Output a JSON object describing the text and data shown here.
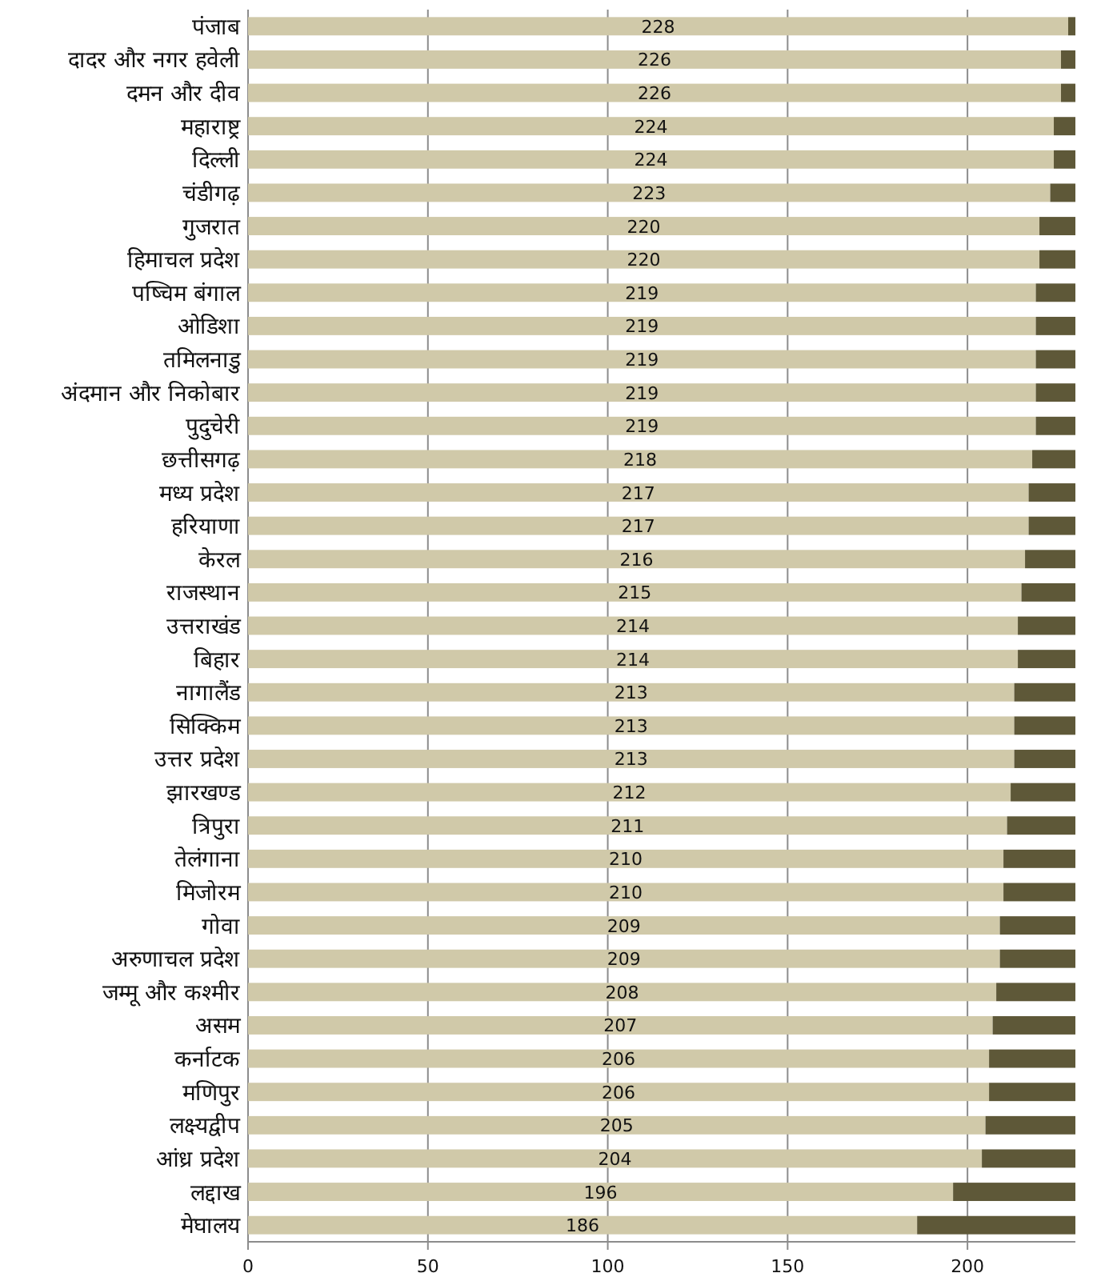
{
  "chart_data": {
    "type": "bar",
    "orientation": "horizontal",
    "stacked": true,
    "grid": "x",
    "categories": [
      "पंजाब",
      "दादर और नगर हवेली",
      "दमन और दीव",
      "महाराष्ट्र",
      "दिल्ली",
      "चंडीगढ़",
      "गुजरात",
      "हिमाचल प्रदेश",
      "पष्चिम बंगाल",
      "ओडिशा",
      "तमिलनाडु",
      "अंदमान और निकोबार",
      "पुदुचेरी",
      "छत्तीसगढ़",
      "मध्य प्रदेश",
      "हरियाणा",
      "केरल",
      "राजस्थान",
      "उत्तराखंड",
      "बिहार",
      "नागालैंड",
      "सिक्किम",
      "उत्तर प्रदेश",
      "झारखण्ड",
      "त्रिपुरा",
      "तेलंगाना",
      "मिजोरम",
      "गोवा",
      "अरुणाचल प्रदेश",
      "जम्मू और कश्मीर",
      "असम",
      "कर्नाटक",
      "मणिपुर",
      "लक्ष्यद्वीप",
      "आंध्र प्रदेश",
      "लद्दाख",
      "मेघालय"
    ],
    "series": [
      {
        "color": "#d0c9a9",
        "values": [
          228,
          226,
          226,
          224,
          224,
          223,
          220,
          220,
          219,
          219,
          219,
          219,
          219,
          218,
          217,
          217,
          216,
          215,
          214,
          214,
          213,
          213,
          213,
          212,
          211,
          210,
          210,
          209,
          209,
          208,
          207,
          206,
          206,
          205,
          204,
          196,
          186
        ],
        "value_labels": [
          "228",
          "226",
          "226",
          "224",
          "224",
          "223",
          "220",
          "220",
          "219",
          "219",
          "219",
          "219",
          "219",
          "218",
          "217",
          "217",
          "216",
          "215",
          "214",
          "214",
          "213",
          "213",
          "213",
          "212",
          "211",
          "210",
          "210",
          "209",
          "209",
          "208",
          "207",
          "206",
          "206",
          "205",
          "204",
          "196",
          "186"
        ]
      },
      {
        "color": "#5e5838",
        "values": [
          2,
          4,
          4,
          6,
          6,
          7,
          10,
          10,
          11,
          11,
          11,
          11,
          11,
          12,
          13,
          13,
          14,
          15,
          16,
          16,
          17,
          17,
          17,
          18,
          19,
          20,
          20,
          21,
          21,
          22,
          23,
          24,
          24,
          25,
          26,
          34,
          44
        ]
      }
    ],
    "xlim": [
      0,
      230
    ],
    "xticks": [
      0,
      50,
      100,
      150,
      200
    ]
  }
}
